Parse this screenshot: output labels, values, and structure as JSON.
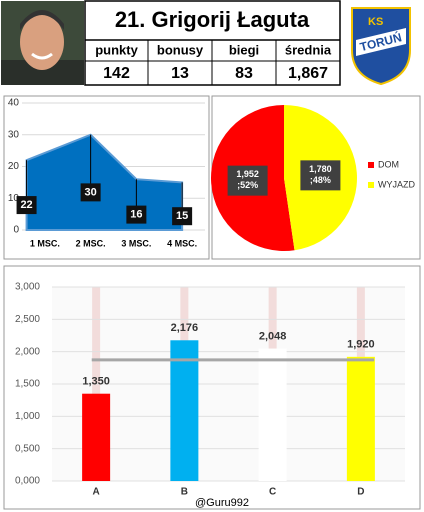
{
  "header": {
    "title": "21. Grigorij Łaguta",
    "stats": [
      {
        "label": "punkty",
        "value": "142"
      },
      {
        "label": "bonusy",
        "value": "13"
      },
      {
        "label": "biegi",
        "value": "83"
      },
      {
        "label": "średnia",
        "value": "1,867"
      }
    ],
    "logo": {
      "top": "KS",
      "name": "TORUŃ"
    }
  },
  "footer": "@Guru992",
  "chart_data": [
    {
      "type": "area",
      "categories": [
        "1 MSC.",
        "2 MSC.",
        "3 MSC.",
        "4 MSC."
      ],
      "values": [
        22,
        30,
        16,
        15
      ],
      "color": "#0070c0",
      "ylim": [
        0,
        40
      ],
      "yticks": [
        0,
        10,
        20,
        30,
        40
      ],
      "grid": true
    },
    {
      "type": "pie",
      "categories": [
        "DOM",
        "WYJAZD"
      ],
      "values": [
        1952,
        1780
      ],
      "value_labels": [
        "1,952 ;52%",
        "1,780 ;48%"
      ],
      "colors": [
        "#ff0000",
        "#ffff00"
      ],
      "legend": "right"
    },
    {
      "type": "bar",
      "categories": [
        "A",
        "B",
        "C",
        "D"
      ],
      "values": [
        1350,
        2176,
        2048,
        1920
      ],
      "value_labels": [
        "1,350",
        "2,176",
        "2,048",
        "1,920"
      ],
      "colors": [
        "#ff0000",
        "#00b0f0",
        "#ffffff",
        "#ffff00"
      ],
      "ylim": [
        0,
        3000
      ],
      "yticks": [
        {
          "value": 0,
          "label": "0,000"
        },
        {
          "value": 500,
          "label": "0,500"
        },
        {
          "value": 1000,
          "label": "1,000"
        },
        {
          "value": 1500,
          "label": "1,500"
        },
        {
          "value": 2000,
          "label": "2,000"
        },
        {
          "value": 2500,
          "label": "2,500"
        },
        {
          "value": 3000,
          "label": "3,000"
        }
      ],
      "grid": true,
      "reference_line": 1873.5,
      "reference_color": "#a6a6a6"
    }
  ]
}
